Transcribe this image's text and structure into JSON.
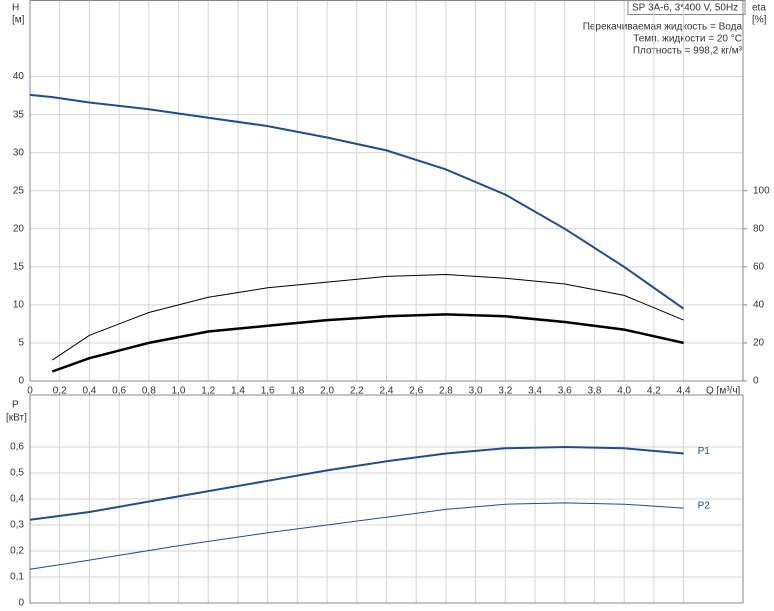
{
  "chart_data": [
    {
      "type": "line",
      "title": "SP 3A-6, 3*400 V, 50Hz",
      "annotations": [
        "Перекачиваемая жидкость = Вода",
        "Темп. жидкости = 20 °C",
        "Плотность = 998,2 кг/м³"
      ],
      "ylabel": "H",
      "yunit": "[м]",
      "y2label": "eta",
      "y2unit": "[%]",
      "xlabel": "Q [м³/ч]",
      "x": [
        0,
        0.15,
        0.4,
        0.8,
        1.2,
        1.6,
        2.0,
        2.4,
        2.8,
        3.2,
        3.6,
        4.0,
        4.4
      ],
      "series": [
        {
          "color": "#1f4e8a",
          "line_width": 2,
          "values": [
            37.6,
            37.3,
            36.6,
            35.7,
            34.6,
            33.5,
            32,
            30.3,
            27.8,
            24.5,
            20,
            15,
            9.5
          ]
        },
        {
          "color": "#000000",
          "line_width": 1,
          "axis": "y2",
          "values": [
            null,
            11,
            24,
            36,
            44,
            49,
            52,
            55,
            56,
            54,
            51,
            45,
            32
          ]
        },
        {
          "color": "#000000",
          "line_width": 2.5,
          "axis": "y2",
          "values": [
            null,
            5,
            12,
            20,
            26,
            29,
            32,
            34,
            35,
            34,
            31,
            27,
            20
          ]
        }
      ],
      "xlim": [
        0,
        4.8
      ],
      "xticks": [
        0,
        {
          "value": 0.2,
          "label": "0,2"
        },
        {
          "value": 0.4,
          "label": "0,4"
        },
        {
          "value": 0.6,
          "label": "0,6"
        },
        {
          "value": 0.8,
          "label": "0,8"
        },
        {
          "value": 1,
          "label": "1,0"
        },
        {
          "value": 1.2,
          "label": "1,2"
        },
        {
          "value": 1.4,
          "label": "1,4"
        },
        {
          "value": 1.6,
          "label": "1,6"
        },
        {
          "value": 1.8,
          "label": "1,8"
        },
        {
          "value": 2,
          "label": "2,0"
        },
        {
          "value": 2.2,
          "label": "2,2"
        },
        {
          "value": 2.4,
          "label": "2,4"
        },
        {
          "value": 2.6,
          "label": "2,6"
        },
        {
          "value": 2.8,
          "label": "2,8"
        },
        {
          "value": 3,
          "label": "3,0"
        },
        {
          "value": 3.2,
          "label": "3,2"
        },
        {
          "value": 3.4,
          "label": "3,4"
        },
        {
          "value": 3.6,
          "label": "3,6"
        },
        {
          "value": 3.8,
          "label": "3,8"
        },
        {
          "value": 4,
          "label": "4,0"
        },
        {
          "value": 4.2,
          "label": "4,2"
        },
        {
          "value": 4.4,
          "label": "4,4"
        }
      ],
      "ylim": [
        0,
        50
      ],
      "yticks": [
        0,
        5,
        10,
        15,
        20,
        25,
        30,
        35,
        40
      ],
      "y2lim": [
        0,
        200
      ],
      "y2ticks": [
        0,
        20,
        40,
        60,
        80,
        100
      ],
      "grid": true
    },
    {
      "type": "line",
      "ylabel": "P",
      "yunit": "[кВт]",
      "x": [
        0,
        0.4,
        1.0,
        1.6,
        2.0,
        2.4,
        2.8,
        3.2,
        3.6,
        4.0,
        4.4
      ],
      "series": [
        {
          "name": "P1",
          "color": "#1f4e8a",
          "line_width": 2,
          "values": [
            0.32,
            0.35,
            0.41,
            0.47,
            0.51,
            0.545,
            0.575,
            0.595,
            0.6,
            0.595,
            0.575
          ]
        },
        {
          "name": "P2",
          "color": "#1f4e8a",
          "line_width": 1,
          "values": [
            0.13,
            0.165,
            0.22,
            0.27,
            0.3,
            0.33,
            0.36,
            0.38,
            0.385,
            0.38,
            0.365
          ]
        }
      ],
      "xlim": [
        0,
        4.8
      ],
      "xticks": [
        0,
        0.2,
        0.4,
        0.6,
        0.8,
        1,
        1.2,
        1.4,
        1.6,
        1.8,
        2,
        2.2,
        2.4,
        2.6,
        2.8,
        3,
        3.2,
        3.4,
        3.6,
        3.8,
        4,
        4.2,
        4.4
      ],
      "ylim": [
        0,
        0.8
      ],
      "yticks": [
        0,
        {
          "value": 0.1,
          "label": "0,1"
        },
        {
          "value": 0.2,
          "label": "0,2"
        },
        {
          "value": 0.3,
          "label": "0,3"
        },
        {
          "value": 0.4,
          "label": "0,4"
        },
        {
          "value": 0.5,
          "label": "0,5"
        },
        {
          "value": 0.6,
          "label": "0,6"
        }
      ],
      "grid": true
    }
  ]
}
